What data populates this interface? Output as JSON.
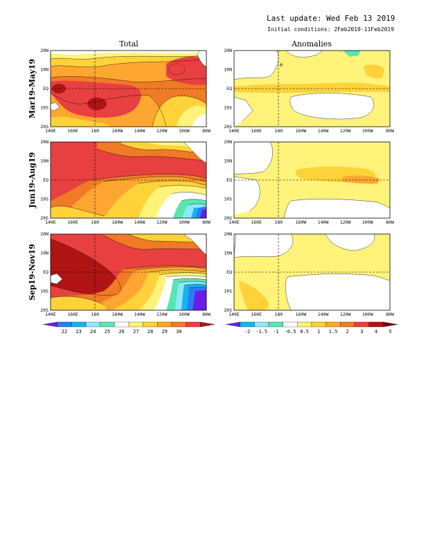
{
  "header": {
    "last_update": "Last update: Wed Feb 13 2019",
    "initial_conditions": "Initial conditions: 2Feb2019-11Feb2019"
  },
  "columns": [
    "Total",
    "Anomalies"
  ],
  "rows": [
    "Mar19-May19",
    "Jun19-Aug19",
    "Sep19-Nov19"
  ],
  "axes": {
    "lon_ticks": [
      "140E",
      "160E",
      "180",
      "160W",
      "140W",
      "120W",
      "100W",
      "80W"
    ],
    "lat_ticks": [
      "20N",
      "10N",
      "EQ",
      "10S",
      "20S"
    ]
  },
  "annotations": {
    "anomaly_contour_label": "0"
  },
  "chart_data": [
    {
      "type": "heatmap",
      "panel": "Total SST",
      "title": "Total",
      "colorbar": {
        "ticks": [
          "22",
          "23",
          "24",
          "25",
          "26",
          "27",
          "28",
          "29",
          "30"
        ],
        "colors": [
          "#6a1ee6",
          "#2c7df5",
          "#19b3ee",
          "#8fe6ff",
          "#58e6b0",
          "#ffffff",
          "#fff37a",
          "#ffd23a",
          "#ffa630",
          "#f07a25",
          "#e84040",
          "#b01414"
        ]
      },
      "x_range": [
        "140E",
        "80W"
      ],
      "y_range": [
        "20S",
        "20N"
      ]
    },
    {
      "type": "heatmap",
      "panel": "SST Anomalies",
      "title": "Anomalies",
      "colorbar": {
        "ticks": [
          "-2",
          "-1.5",
          "-1",
          "-0.5",
          "0.5",
          "1",
          "1.5",
          "2",
          "3",
          "4",
          "5"
        ],
        "colors": [
          "#6a1ee6",
          "#19b3ee",
          "#8fe6ff",
          "#58e6b0",
          "#ffffff",
          "#fff37a",
          "#ffd23a",
          "#ffa630",
          "#f07a25",
          "#e84040",
          "#b01414",
          "#6e0000"
        ]
      },
      "x_range": [
        "140E",
        "80W"
      ],
      "y_range": [
        "20S",
        "20N"
      ]
    }
  ]
}
